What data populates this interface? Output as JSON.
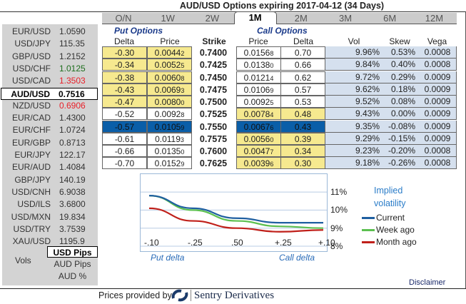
{
  "title": "AUD/USD Options expiring 2017-04-12 (34 Days)",
  "rates": [
    {
      "pair": "EUR/USD",
      "value": "1.0590",
      "color": "#333333"
    },
    {
      "pair": "USD/JPY",
      "value": "115.35",
      "color": "#333333"
    },
    {
      "pair": "GBP/USD",
      "value": "1.2152",
      "color": "#333333"
    },
    {
      "pair": "USD/CHF",
      "value": "1.0125",
      "color": "#1e6e1e"
    },
    {
      "pair": "USD/CAD",
      "value": "1.3503",
      "color": "#e8202a"
    },
    {
      "pair": "AUD/USD",
      "value": "0.7516",
      "color": "#000000",
      "selected": true
    },
    {
      "pair": "NZD/USD",
      "value": "0.6906",
      "color": "#e8202a"
    },
    {
      "pair": "EUR/CAD",
      "value": "1.4300",
      "color": "#333333"
    },
    {
      "pair": "EUR/CHF",
      "value": "1.0724",
      "color": "#333333"
    },
    {
      "pair": "EUR/GBP",
      "value": "0.8713",
      "color": "#333333"
    },
    {
      "pair": "EUR/JPY",
      "value": "122.17",
      "color": "#333333"
    },
    {
      "pair": "EUR/AUD",
      "value": "1.4084",
      "color": "#333333"
    },
    {
      "pair": "GBP/JPY",
      "value": "140.19",
      "color": "#333333"
    },
    {
      "pair": "USD/CNH",
      "value": "6.9038",
      "color": "#333333"
    },
    {
      "pair": "USD/ILS",
      "value": "3.6800",
      "color": "#333333"
    },
    {
      "pair": "USD/MXN",
      "value": "19.834",
      "color": "#333333"
    },
    {
      "pair": "USD/TRY",
      "value": "3.7539",
      "color": "#333333"
    },
    {
      "pair": "XAU/USD",
      "value": "1195.9",
      "color": "#333333"
    }
  ],
  "vols_label": "Vols",
  "units": [
    "USD Pips",
    "AUD Pips",
    "AUD %"
  ],
  "selected_unit": "USD Pips",
  "tabs": [
    "O/N",
    "1W",
    "2W",
    "1M",
    "2M",
    "3M",
    "6M",
    "12M"
  ],
  "active_tab": "1M",
  "put_header": "Put Options",
  "call_header": "Call Options",
  "columns": {
    "put_delta": "Delta",
    "put_price": "Price",
    "strike": "Strike",
    "call_price": "Price",
    "call_delta": "Delta",
    "vol": "Vol",
    "skew": "Skew",
    "vega": "Vega"
  },
  "rows": [
    {
      "pd": "-0.30",
      "pp": "0.0044",
      "ppx": "2",
      "k": "0.7400",
      "cp": "0.0156",
      "cpx": "8",
      "cd": "0.70",
      "vol": "9.96%",
      "skew": "0.53%",
      "vega": "0.0008",
      "put": "y",
      "call": "w"
    },
    {
      "pd": "-0.34",
      "pp": "0.0052",
      "ppx": "5",
      "k": "0.7425",
      "cp": "0.0138",
      "cpx": "0",
      "cd": "0.66",
      "vol": "9.84%",
      "skew": "0.40%",
      "vega": "0.0008",
      "put": "y",
      "call": "w"
    },
    {
      "pd": "-0.38",
      "pp": "0.0060",
      "ppx": "8",
      "k": "0.7450",
      "cp": "0.0121",
      "cpx": "4",
      "cd": "0.62",
      "vol": "9.72%",
      "skew": "0.29%",
      "vega": "0.0009",
      "put": "y",
      "call": "w"
    },
    {
      "pd": "-0.43",
      "pp": "0.0069",
      "ppx": "3",
      "k": "0.7475",
      "cp": "0.0106",
      "cpx": "9",
      "cd": "0.57",
      "vol": "9.62%",
      "skew": "0.18%",
      "vega": "0.0009",
      "put": "y",
      "call": "w"
    },
    {
      "pd": "-0.47",
      "pp": "0.0080",
      "ppx": "0",
      "k": "0.7500",
      "cp": "0.0092",
      "cpx": "5",
      "cd": "0.53",
      "vol": "9.52%",
      "skew": "0.08%",
      "vega": "0.0009",
      "put": "y",
      "call": "w"
    },
    {
      "pd": "-0.52",
      "pp": "0.0092",
      "ppx": "8",
      "k": "0.7525",
      "cp": "0.0078",
      "cpx": "4",
      "cd": "0.48",
      "vol": "9.43%",
      "skew": "0.00%",
      "vega": "0.0009",
      "put": "w",
      "call": "y"
    },
    {
      "pd": "-0.57",
      "pp": "0.0105",
      "ppx": "9",
      "k": "0.7550",
      "cp": "0.0067",
      "cpx": "6",
      "cd": "0.43",
      "vol": "9.35%",
      "skew": "-0.08%",
      "vega": "0.0009",
      "put": "b",
      "call": "b"
    },
    {
      "pd": "-0.61",
      "pp": "0.0119",
      "ppx": "3",
      "k": "0.7575",
      "cp": "0.0056",
      "cpx": "0",
      "cd": "0.39",
      "vol": "9.29%",
      "skew": "-0.15%",
      "vega": "0.0009",
      "put": "w",
      "call": "y"
    },
    {
      "pd": "-0.66",
      "pp": "0.0135",
      "ppx": "0",
      "k": "0.7600",
      "cp": "0.0047",
      "cpx": "7",
      "cd": "0.34",
      "vol": "9.23%",
      "skew": "-0.20%",
      "vega": "0.0008",
      "put": "w",
      "call": "y"
    },
    {
      "pd": "-0.70",
      "pp": "0.0152",
      "ppx": "9",
      "k": "0.7625",
      "cp": "0.0039",
      "cpx": "6",
      "cd": "0.30",
      "vol": "9.18%",
      "skew": "-0.26%",
      "vega": "0.0008",
      "put": "w",
      "call": "y"
    }
  ],
  "chart_data": {
    "type": "line",
    "title": "Implied volatility",
    "x": [
      "-.10",
      "-.25",
      ".50",
      "+.25",
      "+.10"
    ],
    "xlabel_left": "Put delta",
    "xlabel_right": "Call delta",
    "yticks": [
      "11%",
      "10%",
      "9%",
      "8%"
    ],
    "ylim": [
      8,
      11.3
    ],
    "series": [
      {
        "name": "Current",
        "color": "#1f5fa0",
        "values": [
          10.8,
          10.1,
          9.55,
          9.3,
          9.3
        ]
      },
      {
        "name": "Week ago",
        "color": "#5cc050",
        "values": [
          10.8,
          10.0,
          9.4,
          9.1,
          9.0
        ]
      },
      {
        "name": "Month ago",
        "color": "#c0201a",
        "values": [
          10.1,
          9.4,
          9.0,
          8.8,
          8.9
        ]
      }
    ]
  },
  "disclaimer": "Disclaimer",
  "footer": {
    "prefix": "Prices provided by",
    "brand": "Sentry Derivatives"
  }
}
